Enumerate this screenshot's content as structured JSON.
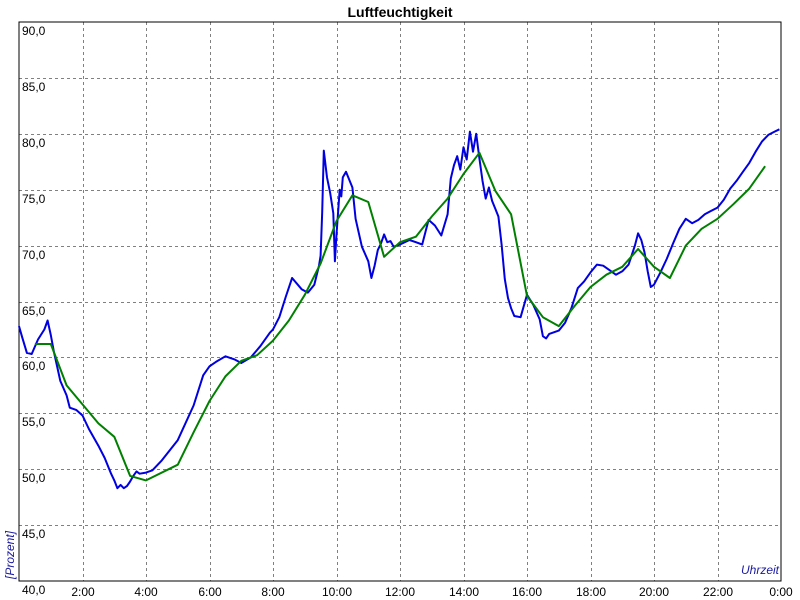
{
  "chart_data": {
    "type": "line",
    "title": "Luftfeuchtigkeit",
    "xlabel": "Uhrzeit",
    "ylabel": "[Prozent]",
    "xlim": [
      0,
      24
    ],
    "ylim": [
      40,
      90
    ],
    "x_ticks": [
      0,
      2,
      4,
      6,
      8,
      10,
      12,
      14,
      16,
      18,
      20,
      22,
      24
    ],
    "x_tick_labels": [
      "",
      "2:00",
      "4:00",
      "6:00",
      "8:00",
      "10:00",
      "12:00",
      "14:00",
      "16:00",
      "18:00",
      "20:00",
      "22:00",
      "0:00"
    ],
    "y_ticks": [
      40,
      45,
      50,
      55,
      60,
      65,
      70,
      75,
      80,
      85,
      90
    ],
    "y_tick_labels": [
      "40,0",
      "45,0",
      "50,0",
      "55,0",
      "60,0",
      "65,0",
      "70,0",
      "75,0",
      "80,0",
      "85,0",
      "90,0"
    ],
    "grid": true,
    "series": [
      {
        "color": "#0000e0",
        "x": [
          0.0,
          0.1,
          0.25,
          0.4,
          0.6,
          0.8,
          0.9,
          1.0,
          1.1,
          1.3,
          1.5,
          1.6,
          1.8,
          2.0,
          2.2,
          2.5,
          2.7,
          2.9,
          3.0,
          3.1,
          3.2,
          3.3,
          3.4,
          3.5,
          3.6,
          3.7,
          3.8,
          4.0,
          4.2,
          4.5,
          5.0,
          5.5,
          5.8,
          6.0,
          6.2,
          6.5,
          6.8,
          7.0,
          7.3,
          7.6,
          7.9,
          8.0,
          8.2,
          8.4,
          8.6,
          8.9,
          9.1,
          9.3,
          9.45,
          9.5,
          9.55,
          9.6,
          9.7,
          9.8,
          9.9,
          9.95,
          10.0,
          10.1,
          10.15,
          10.2,
          10.3,
          10.5,
          10.6,
          10.8,
          11.0,
          11.1,
          11.2,
          11.3,
          11.4,
          11.5,
          11.6,
          11.7,
          11.8,
          12.0,
          12.3,
          12.5,
          12.7,
          12.9,
          13.1,
          13.3,
          13.5,
          13.6,
          13.7,
          13.8,
          13.9,
          14.0,
          14.1,
          14.2,
          14.3,
          14.4,
          14.5,
          14.6,
          14.7,
          14.8,
          14.9,
          15.0,
          15.1,
          15.2,
          15.3,
          15.4,
          15.5,
          15.6,
          15.8,
          16.0,
          16.2,
          16.4,
          16.5,
          16.6,
          16.7,
          16.9,
          17.0,
          17.2,
          17.4,
          17.6,
          17.8,
          18.0,
          18.2,
          18.4,
          18.6,
          18.8,
          19.0,
          19.2,
          19.4,
          19.5,
          19.6,
          19.7,
          19.8,
          19.9,
          20.0,
          20.2,
          20.4,
          20.6,
          20.8,
          21.0,
          21.2,
          21.4,
          21.6,
          21.8,
          22.0,
          22.2,
          22.4,
          22.6,
          22.8,
          23.0,
          23.2,
          23.4,
          23.6,
          23.8,
          23.95
        ],
        "y": [
          62.8,
          61.8,
          60.4,
          60.3,
          61.6,
          62.5,
          63.3,
          62.0,
          60.5,
          57.9,
          56.6,
          55.5,
          55.3,
          54.8,
          53.6,
          52.1,
          51.0,
          49.6,
          49.0,
          48.3,
          48.6,
          48.3,
          48.5,
          48.9,
          49.4,
          49.8,
          49.6,
          49.7,
          49.9,
          50.8,
          52.6,
          55.7,
          58.4,
          59.2,
          59.6,
          60.1,
          59.8,
          59.5,
          60.0,
          61.0,
          62.2,
          62.5,
          63.6,
          65.4,
          67.1,
          66.1,
          65.8,
          66.5,
          68.2,
          69.1,
          73.0,
          78.5,
          76.1,
          74.7,
          72.9,
          68.6,
          71.0,
          75.0,
          74.4,
          76.1,
          76.6,
          75.2,
          72.4,
          69.9,
          68.6,
          67.1,
          68.2,
          69.6,
          70.2,
          71.0,
          70.3,
          70.4,
          69.9,
          70.1,
          70.5,
          70.3,
          70.1,
          72.3,
          71.8,
          70.9,
          72.8,
          76.0,
          77.2,
          78.0,
          76.8,
          78.8,
          77.7,
          80.2,
          78.4,
          80.0,
          77.8,
          75.8,
          74.2,
          75.2,
          74.0,
          73.3,
          72.6,
          70.1,
          67.0,
          65.3,
          64.4,
          63.7,
          63.6,
          65.6,
          64.7,
          63.4,
          61.9,
          61.7,
          62.1,
          62.3,
          62.4,
          63.1,
          64.4,
          66.2,
          66.8,
          67.6,
          68.3,
          68.2,
          67.8,
          67.4,
          67.7,
          68.3,
          70.0,
          71.1,
          70.5,
          69.4,
          67.7,
          66.3,
          66.5,
          67.6,
          68.8,
          70.2,
          71.5,
          72.4,
          72.0,
          72.3,
          72.8,
          73.1,
          73.4,
          74.1,
          75.1,
          75.8,
          76.6,
          77.4,
          78.4,
          79.3,
          79.9,
          80.2,
          80.4
        ]
      },
      {
        "color": "#008000",
        "x": [
          0.5,
          1.0,
          1.5,
          2.5,
          3.0,
          3.5,
          4.0,
          5.0,
          5.5,
          6.0,
          6.5,
          7.0,
          7.5,
          8.0,
          8.5,
          9.0,
          9.5,
          10.0,
          10.5,
          11.0,
          11.5,
          12.0,
          12.5,
          13.0,
          13.5,
          14.0,
          14.5,
          15.0,
          15.5,
          16.0,
          16.5,
          17.0,
          17.5,
          18.0,
          18.5,
          19.0,
          19.5,
          20.0,
          20.5,
          21.0,
          21.5,
          22.0,
          22.5,
          23.0,
          23.5
        ],
        "y": [
          61.2,
          61.2,
          57.5,
          54.1,
          52.9,
          49.4,
          49.0,
          50.4,
          53.3,
          56.1,
          58.3,
          59.7,
          60.2,
          61.5,
          63.3,
          65.6,
          68.4,
          72.2,
          74.5,
          73.9,
          69.0,
          70.3,
          70.8,
          72.6,
          74.2,
          76.4,
          78.3,
          74.9,
          72.8,
          65.5,
          63.6,
          62.8,
          64.6,
          66.3,
          67.4,
          68.1,
          69.7,
          68.1,
          67.1,
          70.0,
          71.5,
          72.4,
          73.7,
          75.1,
          77.1
        ]
      }
    ]
  }
}
